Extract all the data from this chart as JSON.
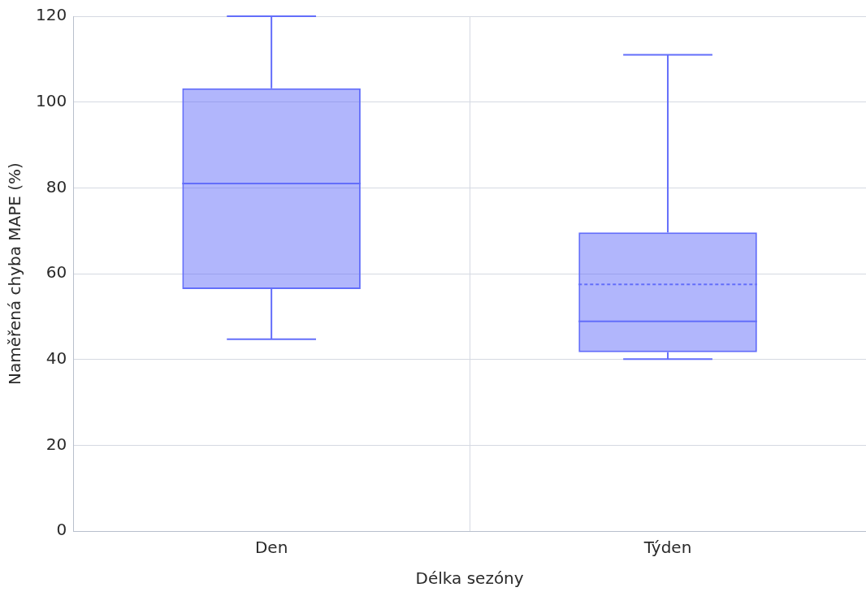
{
  "chart_data": {
    "type": "box",
    "xlabel": "Délka sezóny",
    "ylabel": "Naměřená chyba MAPE (%)",
    "categories": [
      "Den",
      "Týden"
    ],
    "color": "#636efa",
    "boxes": [
      {
        "low": 44.7,
        "q1": 56.4,
        "median": 81.0,
        "q3": 103.2,
        "high": 120
      },
      {
        "low": 40.1,
        "q1": 41.7,
        "median": 48.9,
        "q3": 69.6,
        "high": 111.0,
        "mean": 57.5
      }
    ],
    "ylim": [
      0,
      120
    ],
    "yticks": [
      0,
      20,
      40,
      60,
      80,
      100,
      120
    ],
    "grid": true
  }
}
